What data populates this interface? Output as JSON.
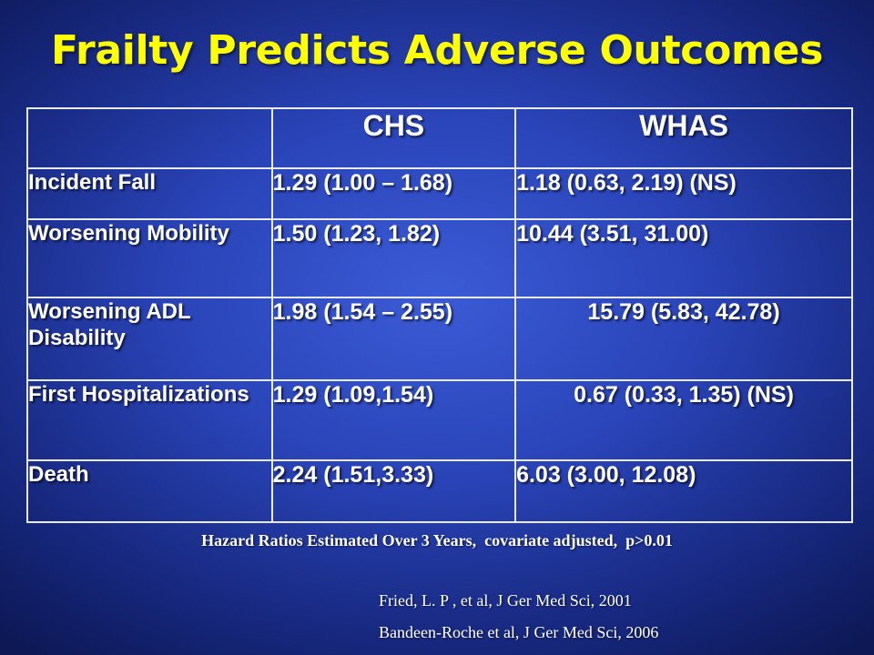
{
  "title": "Frailty Predicts Adverse Outcomes",
  "table": {
    "headers": [
      "",
      "CHS",
      "WHAS"
    ],
    "rows": [
      {
        "label": "Incident Fall",
        "chs": "1.29 (1.00 – 1.68)",
        "whas": "1.18 (0.63, 2.19) (NS)"
      },
      {
        "label": "Worsening Mobility",
        "chs": "1.50 (1.23, 1.82)",
        "whas": "10.44 (3.51, 31.00)"
      },
      {
        "label": "Worsening ADL Disability",
        "chs": "1.98 (1.54 – 2.55)",
        "whas": "15.79 (5.83, 42.78)"
      },
      {
        "label": "First Hospitalizations",
        "chs": "1.29 (1.09,1.54)",
        "whas": "0.67 (0.33, 1.35) (NS)"
      },
      {
        "label": "Death",
        "chs": "2.24 (1.51,3.33)",
        "whas": "6.03 (3.00, 12.08)"
      }
    ]
  },
  "footnote": "Hazard Ratios Estimated Over 3 Years,  covariate adjusted,  p>0.01",
  "references": [
    "Fried, L. P , et al, J Ger Med Sci, 2001",
    "Bandeen-Roche et al, J Ger Med Sci, 2006"
  ],
  "colors": {
    "title": "#ffff00",
    "text": "#ffffff",
    "background": "#2a44b8",
    "border": "#e8ecf6"
  }
}
